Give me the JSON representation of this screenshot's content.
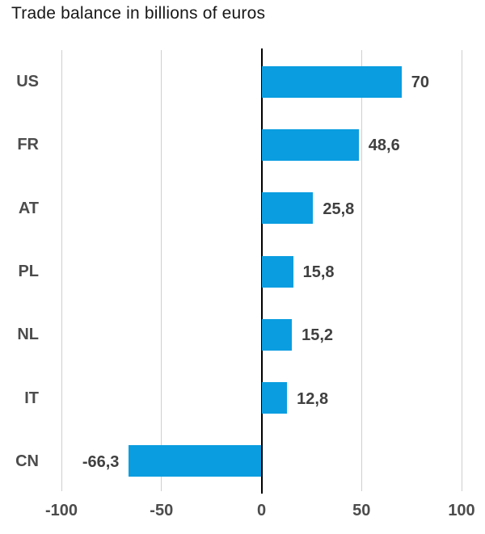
{
  "chart_data": {
    "type": "bar",
    "orientation": "horizontal",
    "title": "Trade balance in billions of euros",
    "categories": [
      "US",
      "FR",
      "AT",
      "PL",
      "NL",
      "IT",
      "CN"
    ],
    "values": [
      70,
      48.6,
      25.8,
      15.8,
      15.2,
      12.8,
      -66.3
    ],
    "value_labels": [
      "70",
      "48,6",
      "25,8",
      "15,8",
      "15,2",
      "12,8",
      "-66,3"
    ],
    "xlabel": "",
    "ylabel": "",
    "xlim": [
      -100,
      100
    ],
    "x_ticks": [
      -100,
      -50,
      0,
      50,
      100
    ],
    "x_tick_labels": [
      "-100",
      "-50",
      "0",
      "50",
      "100"
    ],
    "grid": true,
    "legend": "none",
    "colors": {
      "bar": "#0a9de0",
      "gridline": "#cfcfcf",
      "zero_line": "#000000",
      "title_text": "#171717",
      "label_text": "#4c4c4c"
    }
  }
}
